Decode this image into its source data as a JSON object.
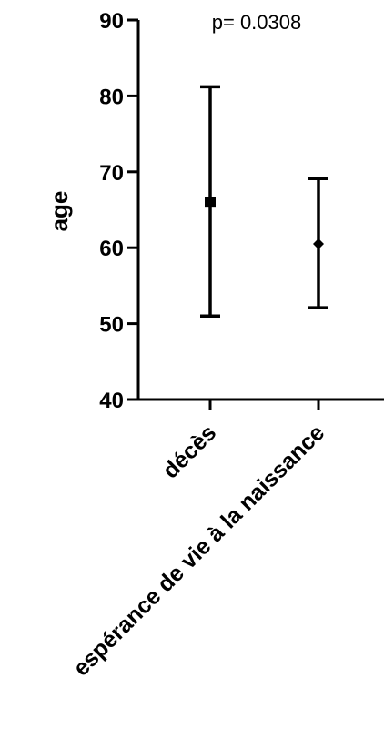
{
  "chart_data": {
    "type": "scatter",
    "ylabel": "age",
    "ylim": [
      40,
      90
    ],
    "yticks": [
      "40",
      "50",
      "60",
      "70",
      "80",
      "90"
    ],
    "annotation": "p= 0.0308",
    "categories": [
      "décès",
      "espérance de vie à la naissance"
    ],
    "points": [
      {
        "category": "décès",
        "value": 66,
        "low": 51,
        "high": 81.2,
        "marker": "square"
      },
      {
        "category": "espérance de vie à la naissance",
        "value": 60.5,
        "low": 52.1,
        "high": 69.1,
        "marker": "diamond"
      }
    ],
    "grid": false,
    "legend": "none"
  },
  "colors": {
    "ink": "#000000",
    "background": "#ffffff"
  }
}
